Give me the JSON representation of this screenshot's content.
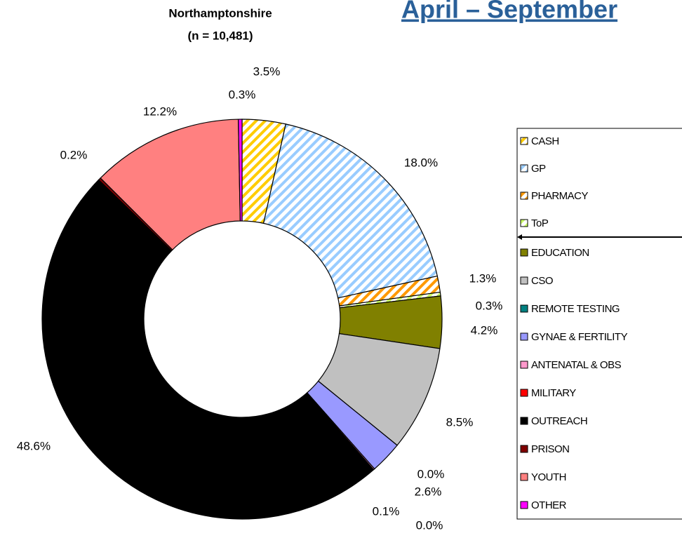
{
  "chart_data": {
    "type": "donut",
    "header": "April – September",
    "title": "Northamptonshire",
    "subtitle": "(n = 10,481)",
    "categories": [
      "CASH",
      "GP",
      "PHARMACY",
      "ToP",
      "EDUCATION",
      "CSO",
      "REMOTE TESTING",
      "GYNAE & FERTILITY",
      "ANTENATAL & OBS",
      "MILITARY",
      "OUTREACH",
      "PRISON",
      "YOUTH",
      "OTHER"
    ],
    "values": [
      3.5,
      18.0,
      1.3,
      0.3,
      4.2,
      8.5,
      0.0,
      2.6,
      0.1,
      0.0,
      48.6,
      0.2,
      12.2,
      0.3
    ],
    "value_labels": [
      "3.5%",
      "18.0%",
      "1.3%",
      "0.3%",
      "4.2%",
      "8.5%",
      "0.0%",
      "2.6%",
      "0.1%",
      "0.0%",
      "48.6%",
      "0.2%",
      "12.2%",
      "0.3%"
    ],
    "colors": [
      "#ffcc00",
      "#99ccff",
      "#ff9900",
      "#ccff66",
      "#808000",
      "#c0c0c0",
      "#008080",
      "#9999ff",
      "#ff99cc",
      "#ff0000",
      "#000000",
      "#800000",
      "#ff8080",
      "#ff00ff"
    ],
    "hatched": [
      true,
      true,
      true,
      true,
      false,
      false,
      false,
      false,
      false,
      false,
      false,
      false,
      false,
      false
    ]
  }
}
